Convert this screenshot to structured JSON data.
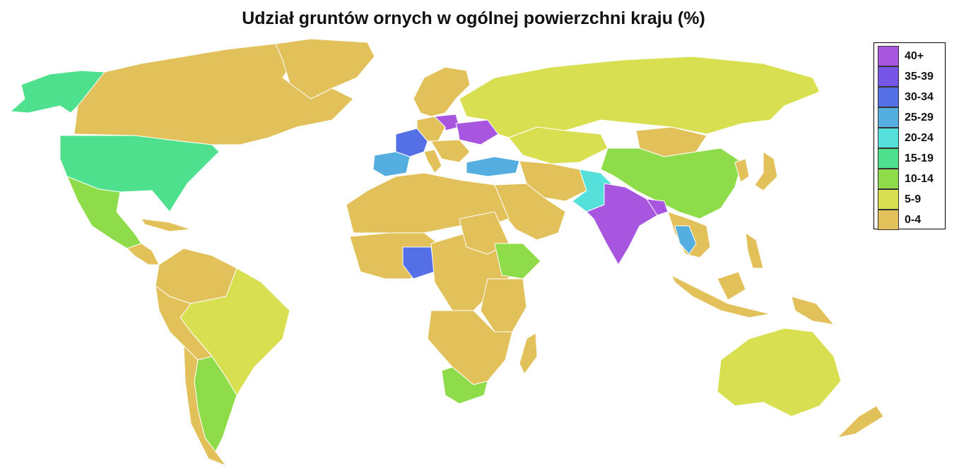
{
  "title": "Udział gruntów ornych w ogólnej powierzchni kraju (%)",
  "legend": [
    {
      "label": "40+",
      "color": "#a855e0"
    },
    {
      "label": "35-39",
      "color": "#7755e6"
    },
    {
      "label": "30-34",
      "color": "#5570e6"
    },
    {
      "label": "25-29",
      "color": "#55aee0"
    },
    {
      "label": "20-24",
      "color": "#55e0dc"
    },
    {
      "label": "15-19",
      "color": "#4ee08c"
    },
    {
      "label": "10-14",
      "color": "#8edc4a"
    },
    {
      "label": "5-9",
      "color": "#d8e052"
    },
    {
      "label": "0-4",
      "color": "#e2c05a"
    }
  ],
  "regions": [
    {
      "name": "Canada",
      "class": "0-4"
    },
    {
      "name": "Alaska",
      "class": "15-19"
    },
    {
      "name": "United States",
      "class": "15-19"
    },
    {
      "name": "Mexico",
      "class": "10-14"
    },
    {
      "name": "Greenland",
      "class": "0-4"
    },
    {
      "name": "Brazil",
      "class": "5-9"
    },
    {
      "name": "Argentina",
      "class": "10-14"
    },
    {
      "name": "France",
      "class": "30-34"
    },
    {
      "name": "Spain",
      "class": "25-29"
    },
    {
      "name": "Turkey",
      "class": "25-29"
    },
    {
      "name": "Ukraine",
      "class": "40+"
    },
    {
      "name": "Poland",
      "class": "40+"
    },
    {
      "name": "Russia",
      "class": "5-9"
    },
    {
      "name": "Kazakhstan",
      "class": "5-9"
    },
    {
      "name": "Mongolia",
      "class": "0-4"
    },
    {
      "name": "China",
      "class": "10-14"
    },
    {
      "name": "India",
      "class": "40+"
    },
    {
      "name": "Bangladesh",
      "class": "40+"
    },
    {
      "name": "Pakistan",
      "class": "20-24"
    },
    {
      "name": "Saudi Arabia",
      "class": "0-4"
    },
    {
      "name": "Nigeria",
      "class": "30-34"
    },
    {
      "name": "Ethiopia",
      "class": "10-14"
    },
    {
      "name": "South Africa",
      "class": "10-14"
    },
    {
      "name": "Australia",
      "class": "5-9"
    },
    {
      "name": "Thailand",
      "class": "25-29"
    }
  ]
}
